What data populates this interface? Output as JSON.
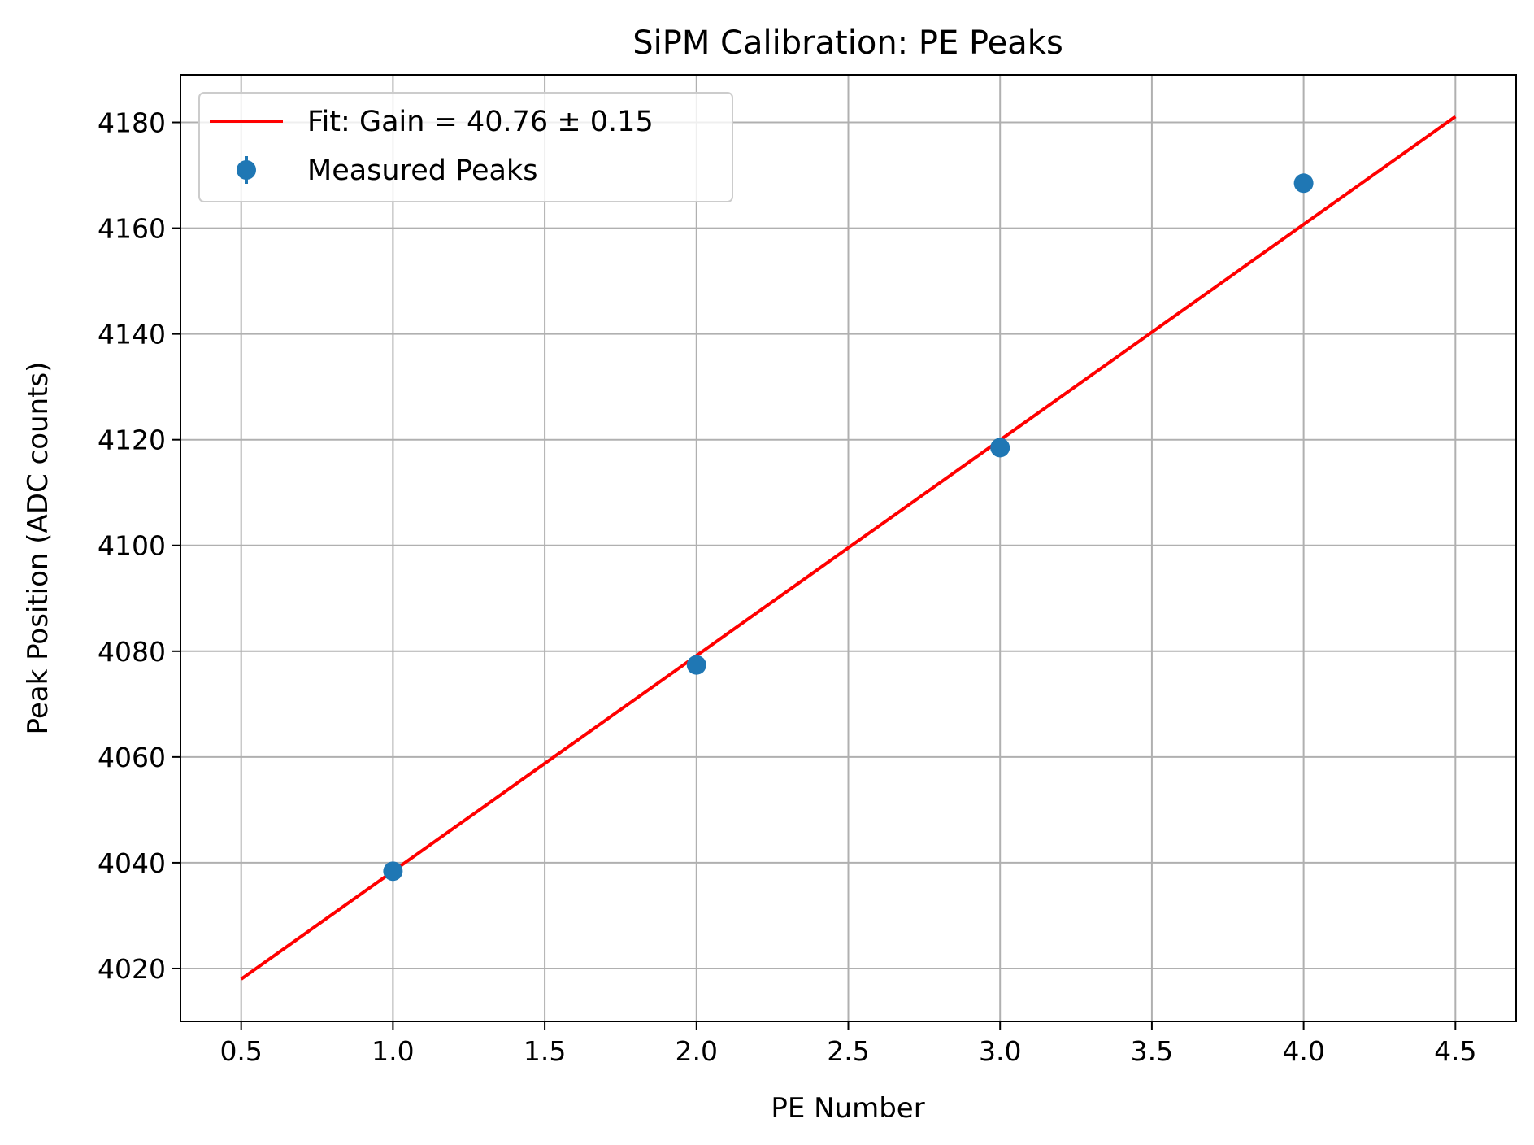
{
  "chart_data": {
    "type": "scatter",
    "title": "SiPM Calibration: PE Peaks",
    "xlabel": "PE Number",
    "ylabel": "Peak Position (ADC counts)",
    "xlim": [
      0.3,
      4.7
    ],
    "ylim": [
      4010,
      4189
    ],
    "xticks": [
      0.5,
      1.0,
      1.5,
      2.0,
      2.5,
      3.0,
      3.5,
      4.0,
      4.5
    ],
    "xtick_labels": [
      "0.5",
      "1.0",
      "1.5",
      "2.0",
      "2.5",
      "3.0",
      "3.5",
      "4.0",
      "4.5"
    ],
    "yticks": [
      4020,
      4040,
      4060,
      4080,
      4100,
      4120,
      4140,
      4160,
      4180
    ],
    "ytick_labels": [
      "4020",
      "4040",
      "4060",
      "4080",
      "4100",
      "4120",
      "4140",
      "4160",
      "4180"
    ],
    "grid": true,
    "legend_position": "top-left",
    "series": [
      {
        "name": "Fit: Gain = 40.76 ± 0.15",
        "type": "line",
        "color": "#ff0000",
        "x": [
          0.5,
          4.5
        ],
        "y": [
          4018.0,
          4181.1
        ]
      },
      {
        "name": "Measured Peaks",
        "type": "errorbar",
        "color": "#1f77b4",
        "x": [
          1,
          2,
          3,
          4
        ],
        "y": [
          4038.4,
          4077.4,
          4118.5,
          4168.5
        ]
      }
    ]
  }
}
